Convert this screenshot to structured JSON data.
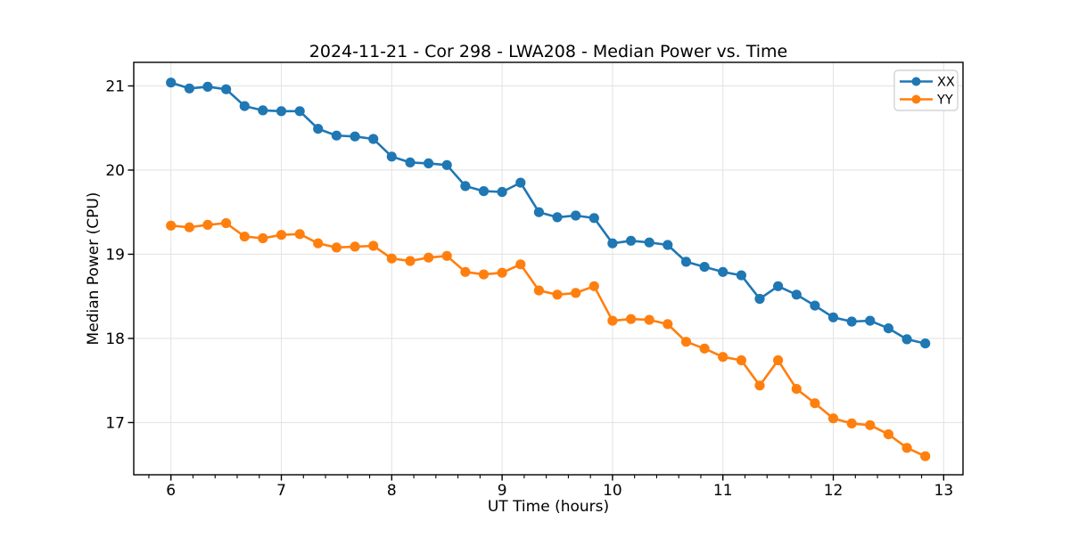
{
  "chart_data": {
    "type": "line",
    "title": "2024-11-21 - Cor 298 - LWA208 - Median Power vs. Time",
    "xlabel": "UT Time (hours)",
    "ylabel": "Median Power (CPU)",
    "xlim": [
      5.663,
      13.175
    ],
    "ylim": [
      16.38,
      21.28
    ],
    "x_ticks": [
      6,
      7,
      8,
      9,
      10,
      11,
      12,
      13
    ],
    "y_ticks": [
      17,
      18,
      19,
      20,
      21
    ],
    "x_minor_step": 0.2,
    "grid": true,
    "grid_color": "#e4e4e4",
    "legend_position": "upper right",
    "marker": "circle",
    "x": [
      6.0,
      6.167,
      6.333,
      6.5,
      6.667,
      6.833,
      7.0,
      7.167,
      7.333,
      7.5,
      7.667,
      7.833,
      8.0,
      8.167,
      8.333,
      8.5,
      8.667,
      8.833,
      9.0,
      9.167,
      9.333,
      9.5,
      9.667,
      9.833,
      10.0,
      10.167,
      10.333,
      10.5,
      10.667,
      10.833,
      11.0,
      11.167,
      11.333,
      11.5,
      11.667,
      11.833,
      12.0,
      12.167,
      12.333,
      12.5,
      12.667,
      12.833
    ],
    "series": [
      {
        "name": "XX",
        "color": "#1f77b4",
        "values": [
          21.04,
          20.97,
          20.99,
          20.96,
          20.76,
          20.71,
          20.7,
          20.7,
          20.49,
          20.41,
          20.4,
          20.37,
          20.16,
          20.09,
          20.08,
          20.06,
          19.81,
          19.75,
          19.74,
          19.85,
          19.5,
          19.44,
          19.46,
          19.43,
          19.13,
          19.16,
          19.14,
          19.11,
          18.91,
          18.85,
          18.79,
          18.75,
          18.47,
          18.62,
          18.52,
          18.39,
          18.25,
          18.2,
          18.21,
          18.12,
          17.99,
          17.94
        ]
      },
      {
        "name": "YY",
        "color": "#ff7f0e",
        "values": [
          19.34,
          19.32,
          19.35,
          19.37,
          19.21,
          19.19,
          19.23,
          19.24,
          19.13,
          19.08,
          19.09,
          19.1,
          18.95,
          18.92,
          18.96,
          18.98,
          18.79,
          18.76,
          18.78,
          18.88,
          18.57,
          18.52,
          18.54,
          18.62,
          18.21,
          18.23,
          18.22,
          18.17,
          17.96,
          17.88,
          17.78,
          17.74,
          17.44,
          17.74,
          17.4,
          17.23,
          17.05,
          16.99,
          16.97,
          16.86,
          16.7,
          16.6
        ]
      }
    ]
  }
}
